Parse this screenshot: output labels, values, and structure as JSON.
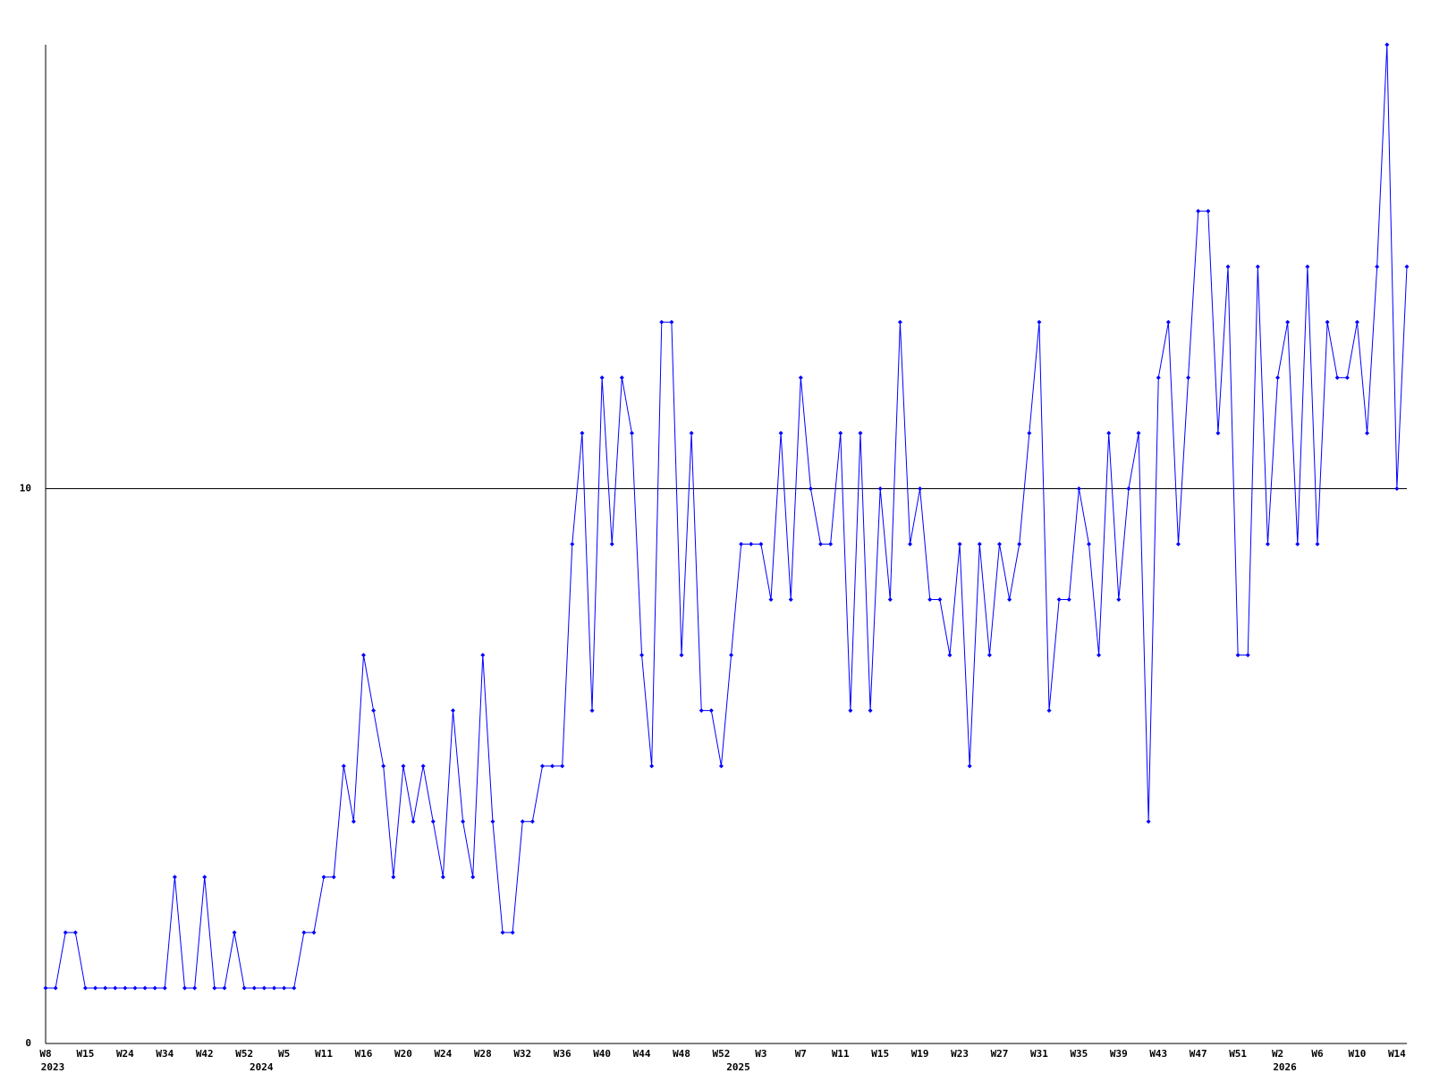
{
  "chart_data": {
    "type": "line",
    "categories": [
      "W8",
      null,
      null,
      null,
      "W15",
      null,
      null,
      null,
      "W24",
      null,
      null,
      null,
      "W34",
      null,
      null,
      null,
      "W42",
      null,
      null,
      null,
      "W52",
      null,
      null,
      null,
      "W5",
      null,
      null,
      null,
      "W11",
      null,
      null,
      null,
      "W16",
      null,
      null,
      null,
      "W20",
      null,
      null,
      null,
      "W24",
      null,
      null,
      null,
      "W28",
      null,
      null,
      null,
      "W32",
      null,
      null,
      null,
      "W36",
      null,
      null,
      null,
      "W40",
      null,
      null,
      null,
      "W44",
      null,
      null,
      null,
      "W48",
      null,
      null,
      null,
      "W52",
      null,
      null,
      null,
      "W3",
      null,
      null,
      null,
      "W7",
      null,
      null,
      null,
      "W11",
      null,
      null,
      null,
      "W15",
      null,
      null,
      null,
      "W19",
      null,
      null,
      null,
      "W23",
      null,
      null,
      null,
      "W27",
      null,
      null,
      null,
      "W31",
      null,
      null,
      null,
      "W35",
      null,
      null,
      null,
      "W39",
      null,
      null,
      null,
      "W43",
      null,
      null,
      null,
      "W47",
      null,
      null,
      null,
      "W51",
      null,
      null,
      null,
      "W2",
      null,
      null,
      null,
      "W6",
      null,
      null,
      null,
      "W10",
      null,
      null,
      null,
      "W14",
      null
    ],
    "category_groups": [
      "2023",
      null,
      null,
      null,
      null,
      null,
      null,
      null,
      null,
      null,
      null,
      null,
      null,
      null,
      null,
      null,
      null,
      null,
      null,
      null,
      null,
      "2024",
      null,
      null,
      null,
      null,
      null,
      null,
      null,
      null,
      null,
      null,
      null,
      null,
      null,
      null,
      null,
      null,
      null,
      null,
      null,
      null,
      null,
      null,
      null,
      null,
      null,
      null,
      null,
      null,
      null,
      null,
      null,
      null,
      null,
      null,
      null,
      null,
      null,
      null,
      null,
      null,
      null,
      null,
      null,
      null,
      null,
      null,
      null,
      "2025",
      null,
      null,
      null,
      null,
      null,
      null,
      null,
      null,
      null,
      null,
      null,
      null,
      null,
      null,
      null,
      null,
      null,
      null,
      null,
      null,
      null,
      null,
      null,
      null,
      null,
      null,
      null,
      null,
      null,
      null,
      null,
      null,
      null,
      null,
      null,
      null,
      null,
      null,
      null,
      null,
      null,
      null,
      null,
      null,
      null,
      null,
      null,
      null,
      null,
      null,
      null,
      null,
      null,
      null,
      "2026",
      null,
      null,
      null,
      null,
      null,
      null,
      null,
      null,
      null,
      null,
      null,
      null,
      null,
      null,
      null,
      null
    ],
    "series": [
      {
        "color": "#0000ff",
        "values": [
          1,
          1,
          2,
          2,
          1,
          1,
          1,
          1,
          1,
          1,
          1,
          1,
          1,
          3,
          1,
          1,
          3,
          1,
          1,
          2,
          1,
          1,
          1,
          1,
          1,
          1,
          2,
          2,
          3,
          3,
          5,
          4,
          7,
          6,
          5,
          3,
          5,
          4,
          5,
          4,
          3,
          6,
          4,
          3,
          7,
          4,
          2,
          2,
          4,
          4,
          5,
          5,
          5,
          9,
          11,
          6,
          12,
          9,
          12,
          11,
          7,
          5,
          13,
          13,
          7,
          11,
          6,
          6,
          5,
          7,
          9,
          9,
          9,
          8,
          11,
          8,
          12,
          10,
          9,
          9,
          11,
          6,
          11,
          6,
          10,
          8,
          13,
          9,
          10,
          8,
          8,
          7,
          9,
          5,
          9,
          7,
          9,
          8,
          9,
          11,
          13,
          6,
          8,
          8,
          10,
          9,
          7,
          11,
          8,
          10,
          11,
          4,
          12,
          13,
          9,
          12,
          15,
          15,
          11,
          14,
          7,
          7,
          14,
          9,
          12,
          13,
          9,
          14,
          9,
          13,
          12,
          12,
          13,
          11,
          14,
          18,
          10,
          14
        ]
      }
    ],
    "ylim": [
      0,
      18
    ],
    "yticks": [
      0,
      10
    ],
    "grid": true
  }
}
